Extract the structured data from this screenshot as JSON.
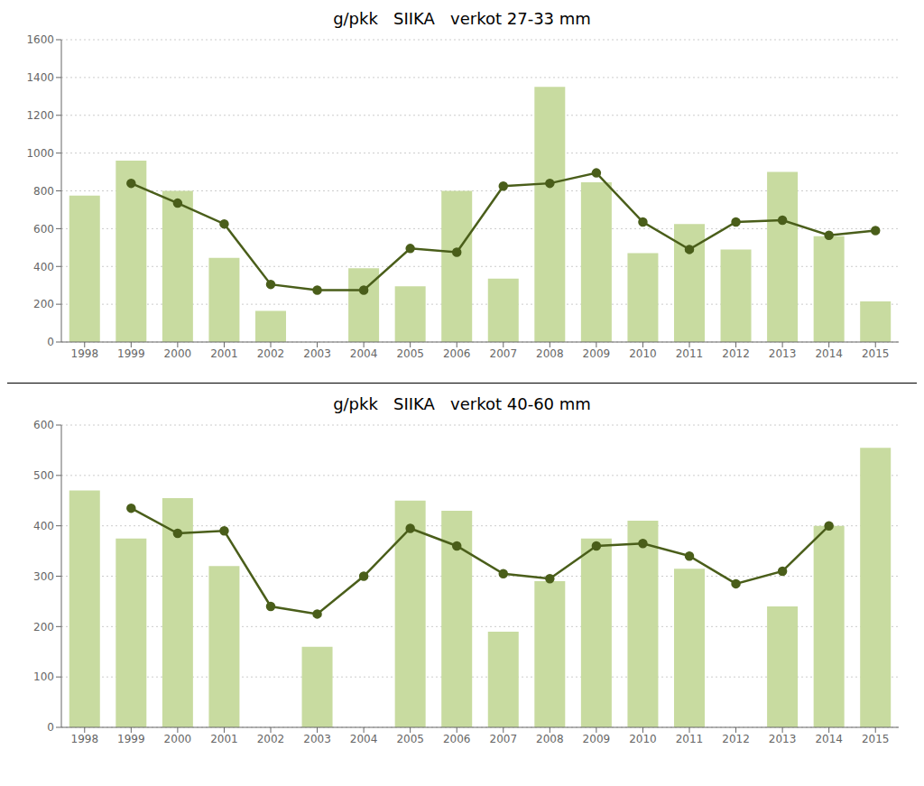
{
  "chart_data": [
    {
      "type": "bar",
      "title": "g/pkk   SIIKA   verkot 27-33 mm",
      "categories": [
        "1998",
        "1999",
        "2000",
        "2001",
        "2002",
        "2003",
        "2004",
        "2005",
        "2006",
        "2007",
        "2008",
        "2009",
        "2010",
        "2011",
        "2012",
        "2013",
        "2014",
        "2015"
      ],
      "series": [
        {
          "type": "bar",
          "color": "#c8dba0",
          "values": [
            775,
            960,
            800,
            445,
            165,
            null,
            390,
            295,
            800,
            335,
            1350,
            845,
            470,
            625,
            490,
            900,
            560,
            215
          ]
        },
        {
          "type": "line",
          "color": "#4a5e1a",
          "marker": "o",
          "values": [
            null,
            840,
            735,
            625,
            305,
            275,
            275,
            495,
            475,
            825,
            840,
            895,
            635,
            490,
            635,
            645,
            565,
            590
          ]
        }
      ],
      "ylim": [
        0,
        1600
      ],
      "yticks": [
        0,
        200,
        400,
        600,
        800,
        1000,
        1200,
        1400,
        1600
      ],
      "grid": true
    },
    {
      "type": "bar",
      "title": "g/pkk   SIIKA   verkot 40-60 mm",
      "categories": [
        "1998",
        "1999",
        "2000",
        "2001",
        "2002",
        "2003",
        "2004",
        "2005",
        "2006",
        "2007",
        "2008",
        "2009",
        "2010",
        "2011",
        "2012",
        "2013",
        "2014",
        "2015"
      ],
      "series": [
        {
          "type": "bar",
          "color": "#c8dba0",
          "values": [
            470,
            375,
            455,
            320,
            null,
            160,
            null,
            450,
            430,
            190,
            290,
            375,
            410,
            315,
            null,
            240,
            400,
            555
          ]
        },
        {
          "type": "line",
          "color": "#4a5e1a",
          "marker": "o",
          "values": [
            null,
            435,
            385,
            390,
            240,
            225,
            300,
            395,
            360,
            305,
            295,
            360,
            365,
            340,
            285,
            310,
            400,
            null
          ]
        }
      ],
      "ylim": [
        0,
        600
      ],
      "yticks": [
        0,
        100,
        200,
        300,
        400,
        500,
        600
      ],
      "grid": true
    }
  ]
}
